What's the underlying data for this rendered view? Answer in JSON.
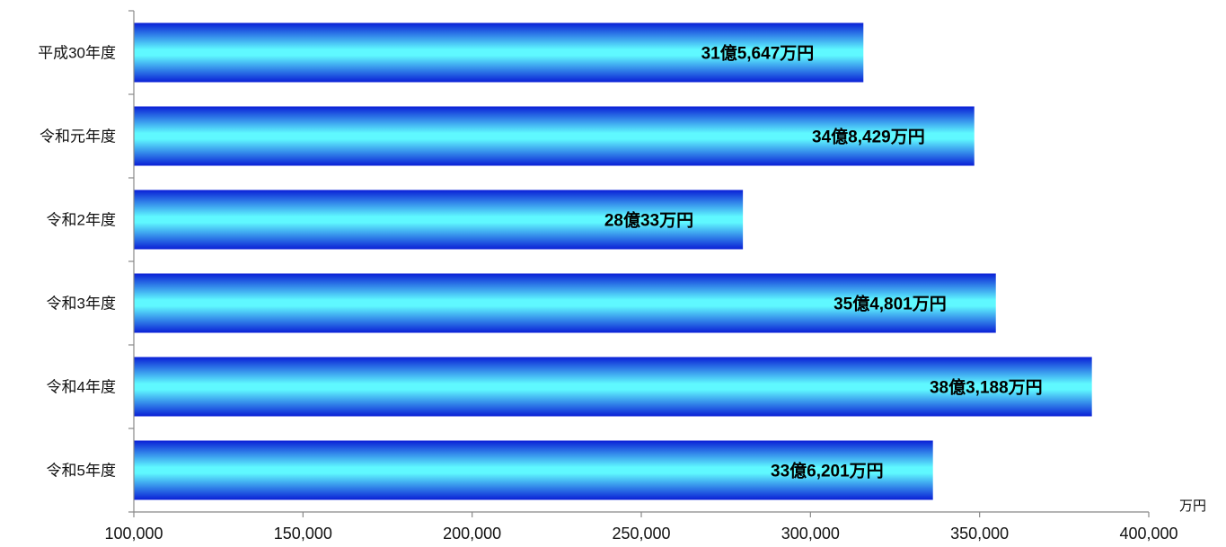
{
  "chart_data": {
    "type": "bar",
    "orientation": "horizontal",
    "categories": [
      "平成30年度",
      "令和元年度",
      "令和2年度",
      "令和3年度",
      "令和4年度",
      "令和5年度"
    ],
    "values": [
      315647,
      348429,
      280033,
      354801,
      383188,
      336201
    ],
    "data_labels": [
      "31億5,647万円",
      "34億8,429万円",
      "28億33万円",
      "35億4,801万円",
      "38億3,188万円",
      "33億6,201万円"
    ],
    "xlim": [
      100000,
      400000
    ],
    "x_ticks": [
      100000,
      150000,
      200000,
      250000,
      300000,
      350000,
      400000
    ],
    "x_tick_labels": [
      "100,000",
      "150,000",
      "200,000",
      "250,000",
      "300,000",
      "350,000",
      "400,000"
    ],
    "x_unit": "万円",
    "grid": false,
    "colors": {
      "bar_edge": "#0a1fd6",
      "bar_center": "#5ff8ff",
      "axis": "#888888"
    }
  }
}
